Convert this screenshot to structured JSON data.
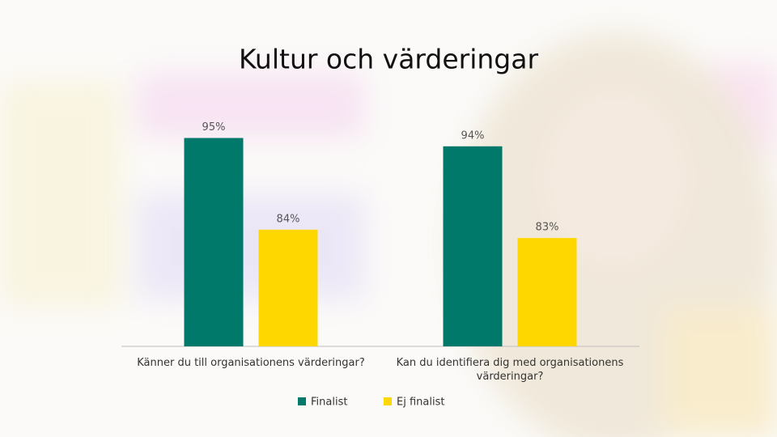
{
  "chart_data": {
    "type": "bar",
    "title": "Kultur och värderingar",
    "categories": [
      "Känner du till organisationens värderingar?",
      "Kan du identifiera dig med organisationens värderingar?"
    ],
    "series": [
      {
        "name": "Finalist",
        "color": "#00786a",
        "values": [
          95,
          94
        ],
        "value_labels": [
          "95%",
          "94%"
        ]
      },
      {
        "name": "Ej finalist",
        "color": "#ffd700",
        "values": [
          84,
          83
        ],
        "value_labels": [
          "84%",
          "83%"
        ]
      }
    ],
    "ylim": [
      70,
      100
    ]
  }
}
